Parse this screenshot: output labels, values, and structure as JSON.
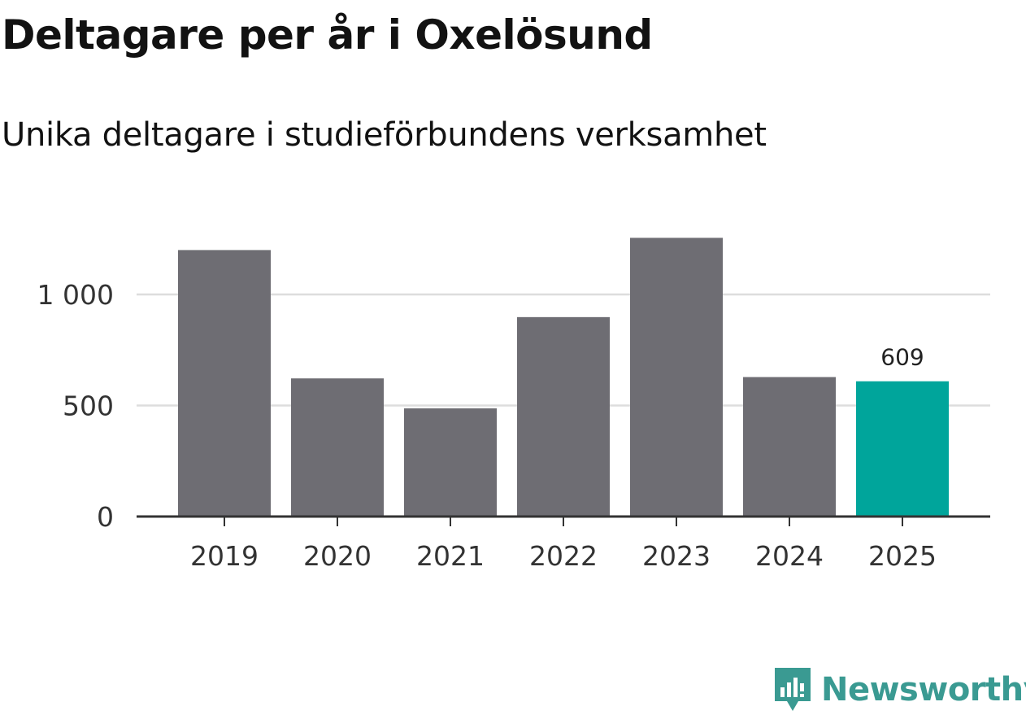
{
  "title": "Deltagare per år i Oxelösund",
  "subtitle": "Unika deltagare i studieförbundens verksamhet",
  "chart_data": {
    "type": "bar",
    "title": "Deltagare per år i Oxelösund",
    "subtitle": "Unika deltagare i studieförbundens verksamhet",
    "xlabel": "",
    "ylabel": "",
    "categories": [
      "2019",
      "2020",
      "2021",
      "2022",
      "2023",
      "2024",
      "2025"
    ],
    "values": [
      1200,
      622,
      487,
      898,
      1255,
      628,
      609
    ],
    "ylim": [
      0,
      1300
    ],
    "yticks": [
      0,
      500,
      1000
    ],
    "ytick_labels": [
      "0",
      "500",
      "1 000"
    ],
    "grid": true,
    "highlight_index": 6,
    "data_labels": [
      {
        "index": 6,
        "text": "609"
      }
    ],
    "colors": {
      "default_bar": "#6e6d73",
      "highlight_bar": "#00a59b",
      "gridline": "#dddddd",
      "axis": "#333333"
    }
  },
  "logo": {
    "text": "Newsworthy",
    "icon": "newsworthy-chart-bubble-icon",
    "color": "#3a9a92"
  }
}
